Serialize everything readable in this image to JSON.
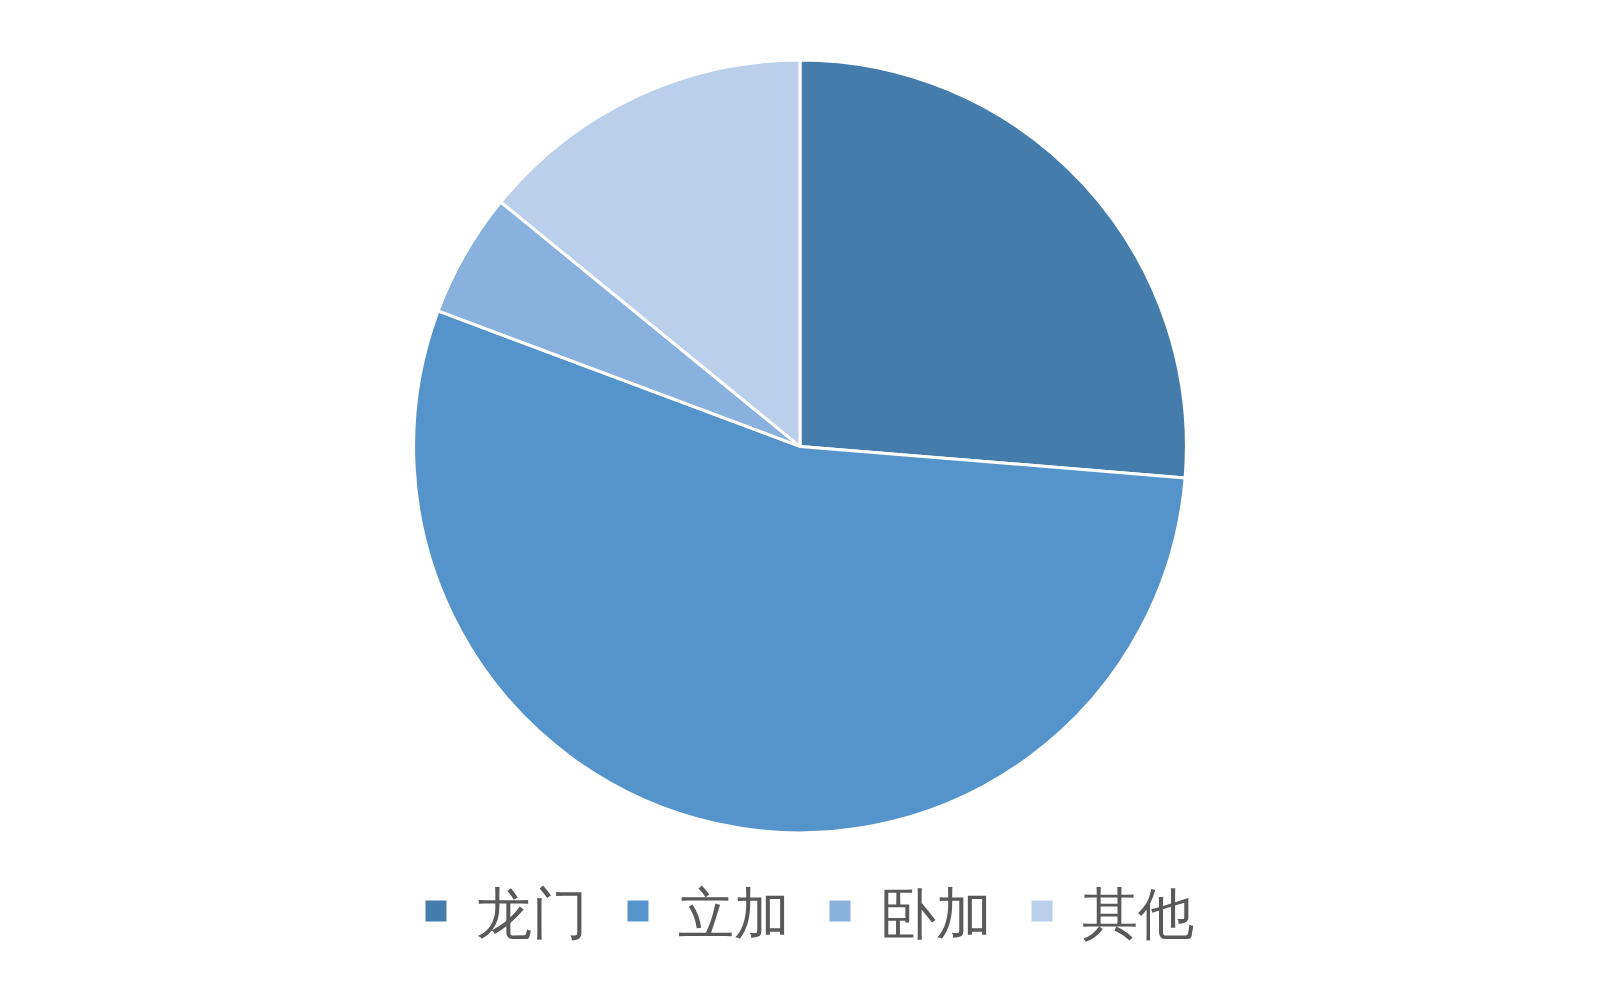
{
  "chart_data": {
    "type": "pie",
    "categories": [
      "龙门",
      "立加",
      "卧加",
      "其他"
    ],
    "values": [
      26.3,
      54.4,
      5.2,
      14.1
    ],
    "colors": [
      "#447cab",
      "#5594ca",
      "#88b1de",
      "#b9cfea"
    ],
    "legend": "bottom"
  }
}
